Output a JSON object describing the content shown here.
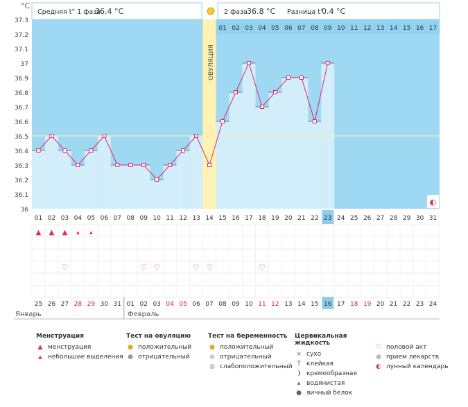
{
  "header": {
    "unit": "°C",
    "phase1_label": "Средняя t° 1 фаза",
    "phase1_value": "36.4 °C",
    "phase2_label": "2 фаза",
    "phase2_value": "36.8 °C",
    "diff_label": "Разница t°",
    "diff_value": "0.4 °C"
  },
  "ovulation_label": "ОВУЛЯЦИЯ",
  "colors": {
    "sky": "#9fd8f3",
    "fill": "#d3eefb",
    "line": "#e0246c",
    "ovulation": "#fff2b3",
    "pink": "#f7b6c9",
    "cover": "#91d2f2",
    "highlight": "#8fcdea",
    "red_text": "#d4253d"
  },
  "chart_data": {
    "type": "line",
    "title": "",
    "xlabel": "",
    "ylabel": "°C",
    "ylim": [
      36,
      37.3
    ],
    "yticks": [
      "36",
      "36.1",
      "36.2",
      "36.3",
      "36.4",
      "36.5",
      "36.6",
      "36.7",
      "36.8",
      "36.9",
      "37",
      "37.1",
      "37.2",
      "37.3"
    ],
    "coverline": 36.5,
    "categories": [
      "01",
      "02",
      "03",
      "04",
      "05",
      "06",
      "07",
      "08",
      "09",
      "10",
      "11",
      "12",
      "13",
      "14",
      "15",
      "16",
      "17",
      "18",
      "19",
      "20",
      "21",
      "22",
      "23",
      "24",
      "25",
      "26",
      "27",
      "28",
      "29",
      "30",
      "31"
    ],
    "series": [
      {
        "values": [
          36.4,
          36.5,
          36.4,
          36.3,
          36.4,
          36.5,
          36.3,
          36.3,
          36.3,
          36.2,
          36.3,
          36.4,
          36.5,
          36.3,
          36.6,
          36.8,
          37.0,
          36.7,
          36.8,
          36.9,
          36.9,
          36.6,
          37.0,
          null,
          null,
          null,
          null,
          null,
          null,
          null,
          null
        ]
      }
    ],
    "ovulation_day": "14",
    "today": "23",
    "phase2_days": [
      "01",
      "02",
      "03",
      "04",
      "05",
      "06",
      "07",
      "08",
      "09",
      "10",
      "11",
      "12",
      "13",
      "14",
      "15",
      "16",
      "17"
    ],
    "phase2_marked": "15",
    "menstruation": [
      "heavy",
      "heavy",
      "heavy",
      "light",
      "light",
      "",
      "",
      "",
      "",
      "",
      "",
      "",
      "",
      "",
      "",
      "",
      "",
      "",
      "",
      "",
      "",
      "",
      "",
      "",
      "",
      "",
      "",
      "",
      "",
      "",
      ""
    ],
    "intercourse": [
      "",
      "",
      "1",
      "",
      "",
      "",
      "",
      "",
      "1",
      "1",
      "",
      "",
      "1",
      "1",
      "",
      "",
      "",
      "1",
      "",
      "",
      "",
      "",
      "",
      "",
      "",
      "",
      "",
      "",
      "",
      "",
      ""
    ],
    "calendar_days": [
      "25",
      "26",
      "27",
      "28",
      "29",
      "30",
      "31",
      "01",
      "02",
      "03",
      "04",
      "05",
      "06",
      "07",
      "08",
      "09",
      "10",
      "11",
      "12",
      "13",
      "14",
      "15",
      "16",
      "17",
      "18",
      "19",
      "20",
      "21",
      "22",
      "23",
      "24"
    ],
    "calendar_red": [
      false,
      false,
      false,
      true,
      true,
      false,
      false,
      false,
      false,
      false,
      true,
      true,
      false,
      false,
      false,
      false,
      false,
      true,
      true,
      false,
      false,
      false,
      false,
      false,
      true,
      true,
      false,
      false,
      false,
      false,
      false
    ],
    "calendar_today": "16",
    "month1": "Январь",
    "month2": "Февраль"
  },
  "legend": {
    "mens": {
      "title": "Менструация",
      "items": [
        "менструация",
        "небольшие выделения"
      ]
    },
    "ovtest": {
      "title": "Тест на овуляцию",
      "items": [
        "положительный",
        "отрицательный"
      ]
    },
    "pregtest": {
      "title": "Тест на беременность",
      "items": [
        "положительный",
        "отрицательный",
        "слабоположительный"
      ]
    },
    "cervical": {
      "title": "Цервикальная жидкость",
      "items": [
        "сухо",
        "клейкая",
        "кремообразная",
        "водянистая",
        "яичный белок"
      ]
    },
    "other": {
      "items": [
        "половой акт",
        "прием лекарств",
        "лунный календарь"
      ]
    }
  }
}
